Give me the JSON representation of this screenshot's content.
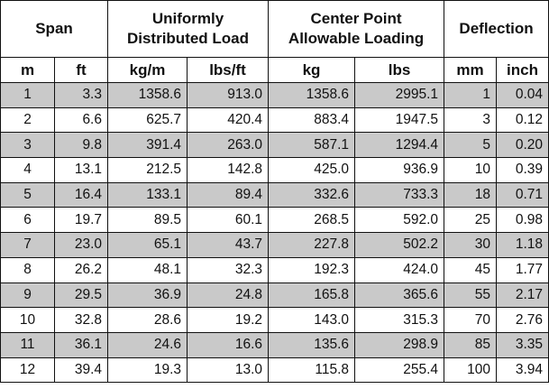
{
  "table": {
    "groups": [
      [
        "Span"
      ],
      [
        "Uniformly",
        "Distributed Load"
      ],
      [
        "Center Point",
        "Allowable Loading"
      ],
      [
        "Deflection"
      ]
    ],
    "units": [
      "m",
      "ft",
      "kg/m",
      "lbs/ft",
      "kg",
      "lbs",
      "mm",
      "inch"
    ],
    "rows": [
      [
        "1",
        "3.3",
        "1358.6",
        "913.0",
        "1358.6",
        "2995.1",
        "1",
        "0.04"
      ],
      [
        "2",
        "6.6",
        "625.7",
        "420.4",
        "883.4",
        "1947.5",
        "3",
        "0.12"
      ],
      [
        "3",
        "9.8",
        "391.4",
        "263.0",
        "587.1",
        "1294.4",
        "5",
        "0.20"
      ],
      [
        "4",
        "13.1",
        "212.5",
        "142.8",
        "425.0",
        "936.9",
        "10",
        "0.39"
      ],
      [
        "5",
        "16.4",
        "133.1",
        "89.4",
        "332.6",
        "733.3",
        "18",
        "0.71"
      ],
      [
        "6",
        "19.7",
        "89.5",
        "60.1",
        "268.5",
        "592.0",
        "25",
        "0.98"
      ],
      [
        "7",
        "23.0",
        "65.1",
        "43.7",
        "227.8",
        "502.2",
        "30",
        "1.18"
      ],
      [
        "8",
        "26.2",
        "48.1",
        "32.3",
        "192.3",
        "424.0",
        "45",
        "1.77"
      ],
      [
        "9",
        "29.5",
        "36.9",
        "24.8",
        "165.8",
        "365.6",
        "55",
        "2.17"
      ],
      [
        "10",
        "32.8",
        "28.6",
        "19.2",
        "143.0",
        "315.3",
        "70",
        "2.76"
      ],
      [
        "11",
        "36.1",
        "24.6",
        "16.6",
        "135.6",
        "298.9",
        "85",
        "3.35"
      ],
      [
        "12",
        "39.4",
        "19.3",
        "13.0",
        "115.8",
        "255.4",
        "100",
        "3.94"
      ]
    ]
  }
}
